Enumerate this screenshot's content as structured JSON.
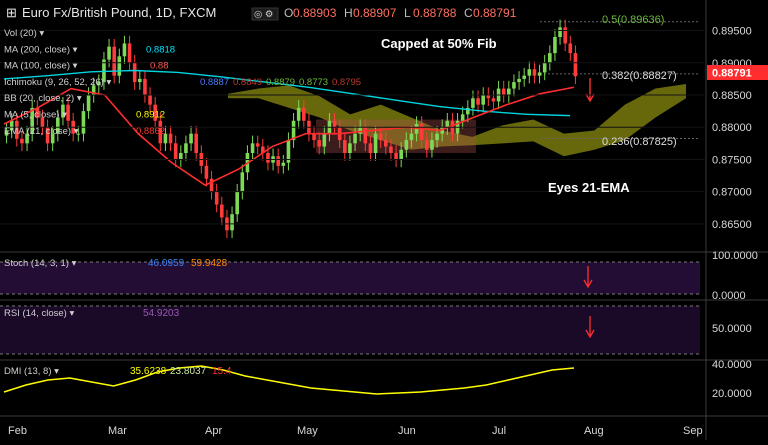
{
  "header": {
    "symbol": "Euro Fx/British Pound, 1D, FXCM",
    "ohlc": [
      {
        "label": "O",
        "value": "0.88903"
      },
      {
        "label": "H",
        "value": "0.88907"
      },
      {
        "label": "L",
        "value": "0.88788"
      },
      {
        "label": "C",
        "value": "0.88791"
      }
    ]
  },
  "indicators": [
    {
      "label": "Vol (20)",
      "values": []
    },
    {
      "label": "MA (200, close)",
      "values": [
        {
          "text": "0.8818",
          "color": "#00e5ff"
        }
      ]
    },
    {
      "label": "MA (100, close)",
      "values": [
        {
          "text": "0.88",
          "color": "#ff5555"
        }
      ]
    },
    {
      "label": "Ichimoku (9, 26, 52, 26)",
      "values": [
        {
          "text": "0.8887",
          "color": "#4a7dff"
        },
        {
          "text": "0.8849",
          "color": "#c0392b"
        },
        {
          "text": "0.8879",
          "color": "#6dbb3c"
        },
        {
          "text": "0.8773",
          "color": "#6dbb3c"
        },
        {
          "text": "0.8795",
          "color": "#c0392b"
        }
      ]
    },
    {
      "label": "BB (20, close, 2)",
      "values": []
    },
    {
      "label": "MA (5, close)",
      "values": [
        {
          "text": "0.8912",
          "color": "#ffff00"
        }
      ]
    },
    {
      "label": "EMA (21, close)",
      "values": [
        {
          "text": "0.8862",
          "color": "#ff3333"
        }
      ]
    }
  ],
  "annotations": {
    "capped": "Capped at 50% Fib",
    "eyes": "Eyes 21-EMA",
    "fib50": "0.5(0.89636)",
    "fib382": "0.382(0.88827)",
    "fib236": "0.236(0.87825)"
  },
  "price_badge": "0.88791",
  "panes": {
    "stoch": {
      "label": "Stoch (14, 3, 1)",
      "k": "46.0959",
      "d": "59.9428",
      "k_color": "#3b82f6",
      "d_color": "#ff8c00"
    },
    "rsi": {
      "label": "RSI (14, close)",
      "value": "54.9203",
      "color": "#9b59b6"
    },
    "dmi": {
      "label": "DMI (13, 8)",
      "adx": "35.6238",
      "plus": "23.8037",
      "minus": "15.4",
      "adx_color": "#ffff00",
      "plus_color": "#c8e6a0",
      "minus_color": "#ff3333"
    }
  },
  "colors": {
    "bull": "#7ed957",
    "bear": "#ff3b3b",
    "ma200": "#00d5e0",
    "ema21": "#ff2d2d",
    "cloud": "#8a8a10",
    "bb_fill": "#b05050",
    "fib": "#9aa0a6"
  },
  "chart_data": {
    "type": "candlestick",
    "y_axis_ticks": [
      "0.89500",
      "0.89000",
      "0.88500",
      "0.88000",
      "0.87500",
      "0.87000",
      "0.86500"
    ],
    "ylim": [
      0.8625,
      0.8985
    ],
    "x_tick_labels": [
      "Feb",
      "Mar",
      "Apr",
      "May",
      "Jun",
      "Jul",
      "Aug",
      "Sep"
    ],
    "close_approx": [
      0.8795,
      0.881,
      0.8782,
      0.8775,
      0.879,
      0.883,
      0.8815,
      0.88,
      0.8775,
      0.879,
      0.8815,
      0.8835,
      0.881,
      0.879,
      0.879,
      0.8825,
      0.885,
      0.8865,
      0.887,
      0.8905,
      0.8925,
      0.888,
      0.891,
      0.893,
      0.89,
      0.887,
      0.8875,
      0.885,
      0.8835,
      0.881,
      0.8775,
      0.879,
      0.8775,
      0.875,
      0.876,
      0.8775,
      0.879,
      0.876,
      0.874,
      0.872,
      0.87,
      0.868,
      0.866,
      0.864,
      0.8665,
      0.87,
      0.873,
      0.876,
      0.8775,
      0.877,
      0.876,
      0.8745,
      0.8755,
      0.874,
      0.8745,
      0.878,
      0.881,
      0.883,
      0.881,
      0.879,
      0.878,
      0.877,
      0.879,
      0.881,
      0.88,
      0.878,
      0.876,
      0.8775,
      0.879,
      0.88,
      0.8775,
      0.876,
      0.879,
      0.878,
      0.877,
      0.876,
      0.875,
      0.8765,
      0.878,
      0.879,
      0.8805,
      0.878,
      0.8765,
      0.878,
      0.879,
      0.88,
      0.881,
      0.879,
      0.881,
      0.882,
      0.883,
      0.8845,
      0.8835,
      0.885,
      0.8845,
      0.884,
      0.886,
      0.885,
      0.886,
      0.887,
      0.8875,
      0.888,
      0.889,
      0.888,
      0.8885,
      0.89,
      0.8915,
      0.894,
      0.8955,
      0.893,
      0.8915,
      0.8879
    ],
    "ma200_approx": [
      0.8875,
      0.888,
      0.8886,
      0.8888,
      0.8885,
      0.8878,
      0.887,
      0.8862,
      0.8852,
      0.8842,
      0.8832,
      0.8825,
      0.882,
      0.8818
    ],
    "ema21_approx": [
      0.8805,
      0.883,
      0.886,
      0.885,
      0.879,
      0.8745,
      0.871,
      0.8735,
      0.877,
      0.879,
      0.879,
      0.8795,
      0.88,
      0.8795,
      0.8815,
      0.8835,
      0.8852,
      0.8862
    ],
    "cloud_top": [
      0.8852,
      0.886,
      0.8865,
      0.8848,
      0.882,
      0.8835,
      0.8815,
      0.8795,
      0.8785,
      0.8803,
      0.8812,
      0.879,
      0.8795,
      0.8835,
      0.886,
      0.8867
    ],
    "cloud_bottom": [
      0.8845,
      0.8845,
      0.883,
      0.8815,
      0.8795,
      0.878,
      0.8765,
      0.877,
      0.8772,
      0.8775,
      0.8778,
      0.8755,
      0.8765,
      0.878,
      0.8815,
      0.8845
    ],
    "stoch_ylim": [
      0,
      100
    ],
    "stoch_ticks": [
      "100.0000",
      "0.0000"
    ],
    "rsi_ticks": [
      "50.0000"
    ],
    "dmi_ticks": [
      "40.0000",
      "20.0000"
    ]
  }
}
